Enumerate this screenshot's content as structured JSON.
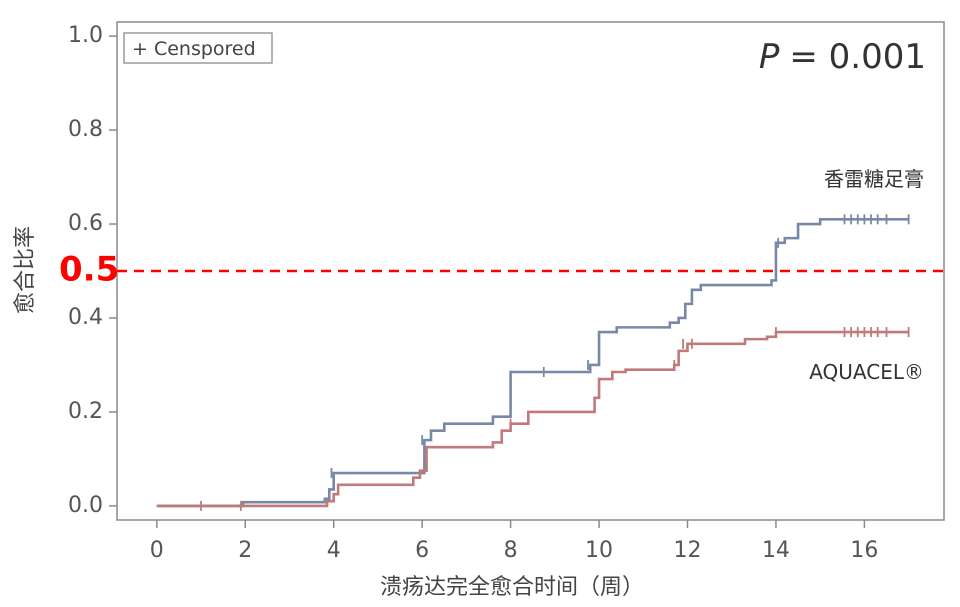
{
  "chart_data": {
    "type": "line",
    "title": "",
    "xlabel": "溃疡达完全愈合时间（周）",
    "ylabel": "愈合比率",
    "xlim": [
      -0.9,
      17.8
    ],
    "ylim": [
      -0.03,
      1.03
    ],
    "xticks": [
      0,
      2,
      4,
      6,
      8,
      10,
      12,
      14,
      16
    ],
    "yticks": [
      0.0,
      0.2,
      0.4,
      0.6,
      0.8,
      1.0
    ],
    "xtick_labels": [
      "0",
      "2",
      "4",
      "6",
      "8",
      "10",
      "12",
      "14",
      "16"
    ],
    "ytick_labels": [
      "0.0",
      "0.2",
      "0.4",
      "0.6",
      "0.8",
      "1.0"
    ],
    "grid": false,
    "legend": {
      "text": "+ Censpored",
      "position": "top-left"
    },
    "annotation": {
      "p_label": "P",
      "p_value": "= 0.001",
      "position": "top-right"
    },
    "reference_line": {
      "y": 0.5,
      "label": "0.5",
      "color": "#ff0000",
      "style": "dashed"
    },
    "series": [
      {
        "name": "香雷糖足膏",
        "color": "#7a88a8",
        "steps": [
          [
            0,
            0.0
          ],
          [
            1.95,
            0.008
          ],
          [
            3.8,
            0.015
          ],
          [
            3.9,
            0.035
          ],
          [
            4.0,
            0.07
          ],
          [
            6.0,
            0.07
          ],
          [
            6.05,
            0.14
          ],
          [
            6.2,
            0.16
          ],
          [
            6.5,
            0.175
          ],
          [
            7.6,
            0.19
          ],
          [
            8.0,
            0.285
          ],
          [
            9.8,
            0.3
          ],
          [
            10.0,
            0.37
          ],
          [
            10.4,
            0.38
          ],
          [
            11.6,
            0.39
          ],
          [
            11.8,
            0.4
          ],
          [
            11.95,
            0.43
          ],
          [
            12.1,
            0.46
          ],
          [
            12.3,
            0.47
          ],
          [
            13.9,
            0.48
          ],
          [
            14.0,
            0.56
          ],
          [
            14.2,
            0.57
          ],
          [
            14.5,
            0.6
          ],
          [
            15.0,
            0.61
          ],
          [
            17.0,
            0.61
          ]
        ],
        "censored": [
          [
            3.95,
            0.07
          ],
          [
            6.0,
            0.14
          ],
          [
            8.75,
            0.285
          ],
          [
            9.75,
            0.3
          ],
          [
            14.05,
            0.56
          ],
          [
            15.55,
            0.61
          ],
          [
            15.7,
            0.61
          ],
          [
            15.85,
            0.61
          ],
          [
            16.0,
            0.61
          ],
          [
            16.15,
            0.61
          ],
          [
            16.3,
            0.61
          ],
          [
            16.5,
            0.61
          ],
          [
            17.0,
            0.61
          ]
        ]
      },
      {
        "name": "AQUACEL®",
        "color": "#c07a7a",
        "steps": [
          [
            0,
            0.0
          ],
          [
            3.85,
            0.01
          ],
          [
            4.0,
            0.025
          ],
          [
            4.1,
            0.045
          ],
          [
            5.8,
            0.06
          ],
          [
            5.95,
            0.075
          ],
          [
            6.1,
            0.125
          ],
          [
            7.6,
            0.135
          ],
          [
            7.8,
            0.16
          ],
          [
            8.0,
            0.175
          ],
          [
            8.4,
            0.2
          ],
          [
            9.9,
            0.23
          ],
          [
            10.0,
            0.27
          ],
          [
            10.3,
            0.285
          ],
          [
            10.6,
            0.29
          ],
          [
            11.7,
            0.3
          ],
          [
            11.8,
            0.33
          ],
          [
            12.0,
            0.345
          ],
          [
            13.3,
            0.355
          ],
          [
            13.8,
            0.36
          ],
          [
            14.0,
            0.37
          ],
          [
            17.0,
            0.37
          ]
        ],
        "censored": [
          [
            1.0,
            0.0
          ],
          [
            1.9,
            0.0
          ],
          [
            8.0,
            0.175
          ],
          [
            11.7,
            0.3
          ],
          [
            11.9,
            0.345
          ],
          [
            12.1,
            0.345
          ],
          [
            14.0,
            0.37
          ],
          [
            15.55,
            0.37
          ],
          [
            15.7,
            0.37
          ],
          [
            15.85,
            0.37
          ],
          [
            16.0,
            0.37
          ],
          [
            16.15,
            0.37
          ],
          [
            16.3,
            0.37
          ],
          [
            16.5,
            0.37
          ],
          [
            17.0,
            0.37
          ]
        ]
      }
    ]
  }
}
